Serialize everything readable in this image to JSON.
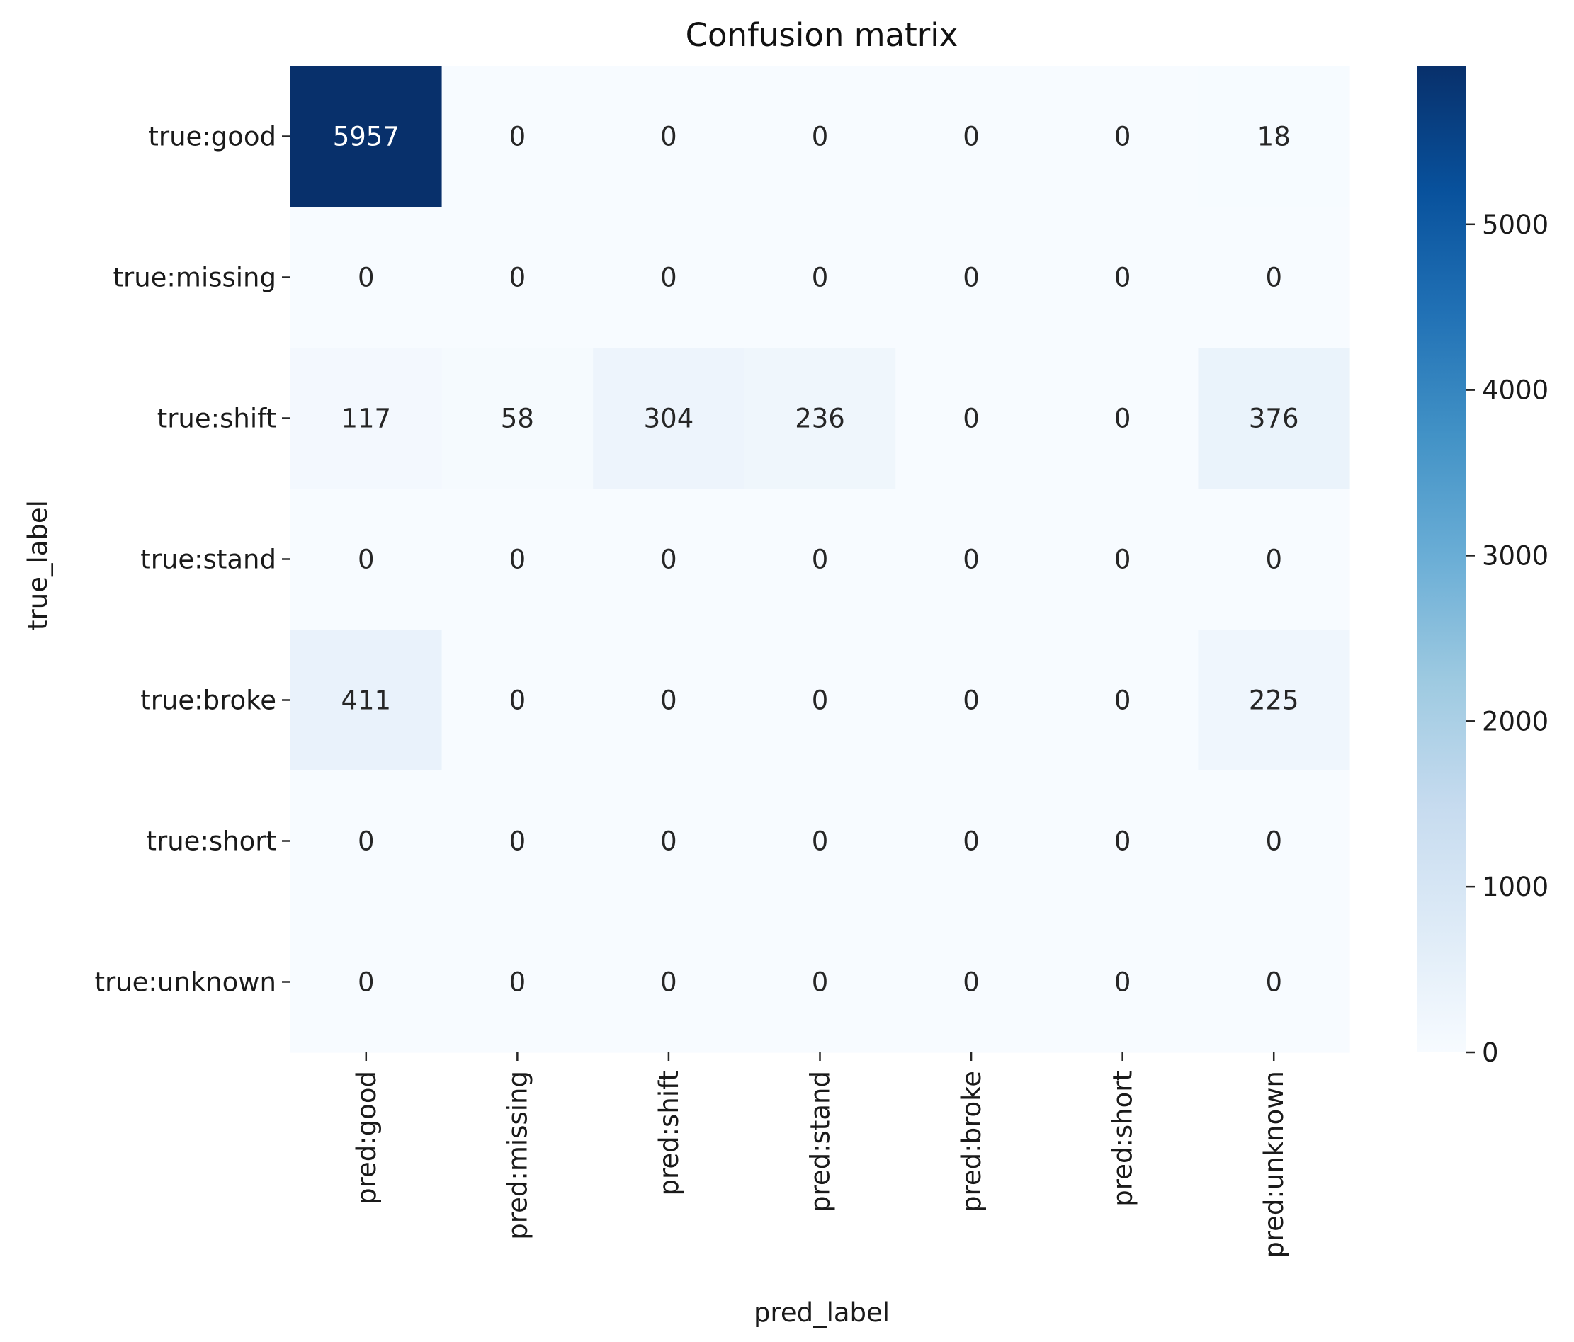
{
  "chart_data": {
    "type": "heatmap",
    "title": "Confusion matrix",
    "xlabel": "pred_label",
    "ylabel": "true_label",
    "x_categories": [
      "pred:good",
      "pred:missing",
      "pred:shift",
      "pred:stand",
      "pred:broke",
      "pred:short",
      "pred:unknown"
    ],
    "y_categories": [
      "true:good",
      "true:missing",
      "true:shift",
      "true:stand",
      "true:broke",
      "true:short",
      "true:unknown"
    ],
    "values": [
      [
        5957,
        0,
        0,
        0,
        0,
        0,
        18
      ],
      [
        0,
        0,
        0,
        0,
        0,
        0,
        0
      ],
      [
        117,
        58,
        304,
        236,
        0,
        0,
        376
      ],
      [
        0,
        0,
        0,
        0,
        0,
        0,
        0
      ],
      [
        411,
        0,
        0,
        0,
        0,
        0,
        225
      ],
      [
        0,
        0,
        0,
        0,
        0,
        0,
        0
      ],
      [
        0,
        0,
        0,
        0,
        0,
        0,
        0
      ]
    ],
    "colormap": "Blues",
    "colorbar": {
      "range": [
        0,
        5957
      ],
      "ticks": [
        0,
        1000,
        2000,
        3000,
        4000,
        5000
      ],
      "tick_labels": [
        "0",
        "1000",
        "2000",
        "3000",
        "4000",
        "5000"
      ]
    },
    "grid": false
  }
}
